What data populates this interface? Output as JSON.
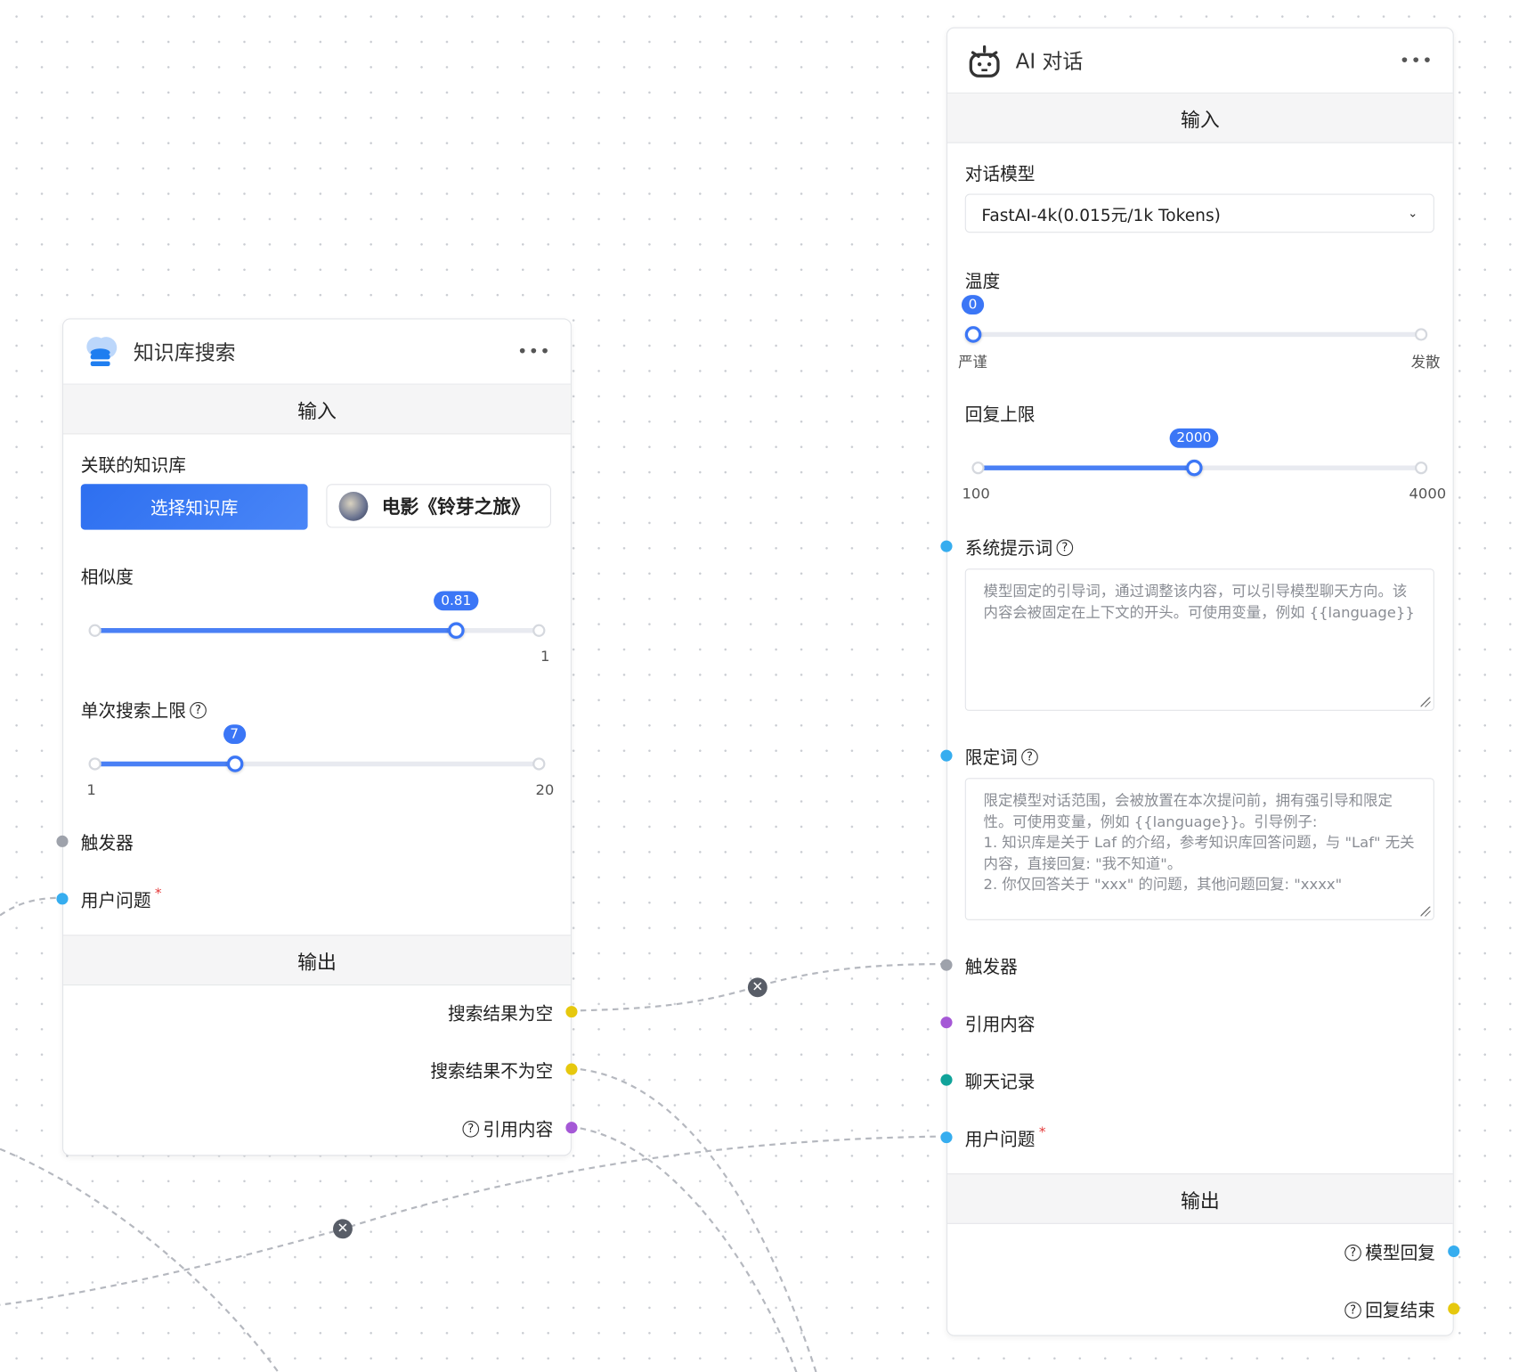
{
  "colors": {
    "accent": "#3b76f6",
    "trigger": "#9ea2ab",
    "string": "#36adef",
    "bool": "#e6c80e",
    "kb": "#a558d6",
    "history": "#10a39a"
  },
  "kb_node": {
    "icon": "database-cloud-icon",
    "title": "知识库搜索",
    "more": "•••",
    "input_section": "输入",
    "kb_label": "关联的知识库",
    "select_button": "选择知识库",
    "selected_kb": "电影《铃芽之旅》",
    "similarity": {
      "label": "相似度",
      "value": 0.81,
      "value_label": "0.81",
      "min": 0,
      "max": 1,
      "max_label": "1"
    },
    "limit": {
      "label": "单次搜索上限",
      "value": 7,
      "value_label": "7",
      "min": 1,
      "max": 20,
      "min_label": "1",
      "max_label": "20"
    },
    "trigger": "触发器",
    "user_question": "用户问题",
    "required": "*",
    "output_section": "输出",
    "outputs": [
      "搜索结果为空",
      "搜索结果不为空",
      "引用内容"
    ]
  },
  "ai_node": {
    "icon": "robot-icon",
    "title": "AI 对话",
    "more": "•••",
    "input_section": "输入",
    "model_label": "对话模型",
    "model_value": "FastAI-4k(0.015元/1k Tokens)",
    "temperature": {
      "label": "温度",
      "value": 0,
      "value_label": "0",
      "min": 0,
      "max": 10,
      "min_label": "严谨",
      "max_label": "发散"
    },
    "max_tokens": {
      "label": "回复上限",
      "value": 2000,
      "value_label": "2000",
      "min": 100,
      "max": 4000,
      "min_label": "100",
      "max_label": "4000"
    },
    "system_prompt": {
      "label": "系统提示词",
      "placeholder": "模型固定的引导词，通过调整该内容，可以引导模型聊天方向。该内容会被固定在上下文的开头。可使用变量，例如 {{language}}"
    },
    "limit_prompt": {
      "label": "限定词",
      "placeholder": "限定模型对话范围，会被放置在本次提问前，拥有强引导和限定性。可使用变量，例如 {{language}}。引导例子:\n1. 知识库是关于 Laf 的介绍，参考知识库回答问题，与 \"Laf\" 无关内容，直接回复: \"我不知道\"。\n2. 你仅回答关于 \"xxx\" 的问题，其他问题回复: \"xxxx\""
    },
    "inputs": [
      "触发器",
      "引用内容",
      "聊天记录",
      "用户问题"
    ],
    "required": "*",
    "output_section": "输出",
    "outputs": [
      "模型回复",
      "回复结束"
    ]
  }
}
